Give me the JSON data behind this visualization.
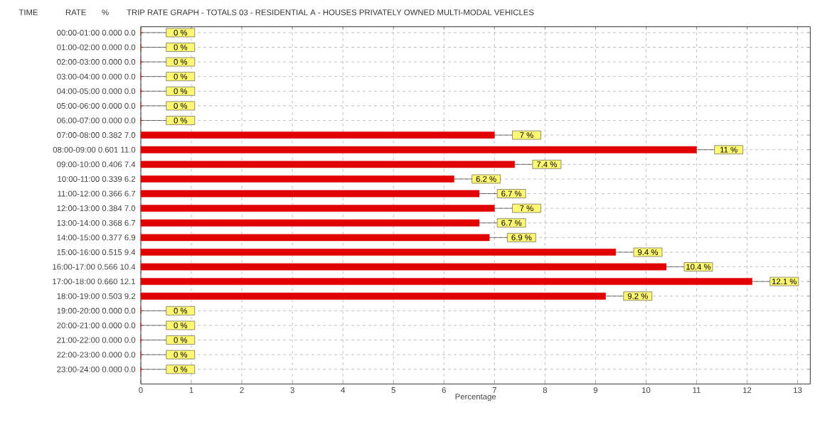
{
  "chart_data": {
    "type": "bar",
    "orientation": "horizontal",
    "title": "TRIP RATE GRAPH - TOTALS  03 - RESIDENTIAL  A - HOUSES PRIVATELY OWNED     MULTI-MODAL VEHICLES",
    "xlabel": "Percentage",
    "annotations": [
      "TIME",
      "RATE",
      "%"
    ],
    "categories": [
      "00:00-01:00  0.000  0.0",
      "01:00-02:00  0.000  0.0",
      "02:00-03:00  0.000  0.0",
      "03:00-04:00  0.000  0.0",
      "04:00-05:00  0.000  0.0",
      "05:00-06:00  0.000  0.0",
      "06:00-07:00  0.000  0.0",
      "07:00-08:00  0.382  7.0",
      "08:00-09:00  0.601 11.0",
      "09:00-10:00  0.406  7.4",
      "10:00-11:00  0.339  6.2",
      "11:00-12:00  0.366  6.7",
      "12:00-13:00  0.384  7.0",
      "13:00-14:00  0.368  6.7",
      "14:00-15:00  0.377  6.9",
      "15:00-16:00  0.515  9.4",
      "16:00-17:00  0.566 10.4",
      "17:00-18:00  0.660 12.1",
      "18:00-19:00  0.503  9.2",
      "19:00-20:00  0.000  0.0",
      "20:00-21:00  0.000  0.0",
      "21:00-22:00  0.000  0.0",
      "22:00-23:00  0.000  0.0",
      "23:00-24:00  0.000  0.0"
    ],
    "values": [
      0,
      0,
      0,
      0,
      0,
      0,
      0,
      7.0,
      11.0,
      7.4,
      6.2,
      6.7,
      7.0,
      6.7,
      6.9,
      9.4,
      10.4,
      12.1,
      9.2,
      0,
      0,
      0,
      0,
      0
    ],
    "value_labels": [
      "0 %",
      "0 %",
      "0 %",
      "0 %",
      "0 %",
      "0 %",
      "0 %",
      "7 %",
      "11 %",
      "7.4 %",
      "6.2 %",
      "6.7 %",
      "7 %",
      "6.7 %",
      "6.9 %",
      "9.4 %",
      "10.4 %",
      "12.1 %",
      "9.2 %",
      "0 %",
      "0 %",
      "0 %",
      "0 %",
      "0 %"
    ],
    "color": "#e00000",
    "xlim": [
      0,
      13.25
    ],
    "xticks": [
      0,
      1,
      2,
      3,
      4,
      5,
      6,
      7,
      8,
      9,
      10,
      11,
      12,
      13
    ],
    "grid": true
  }
}
